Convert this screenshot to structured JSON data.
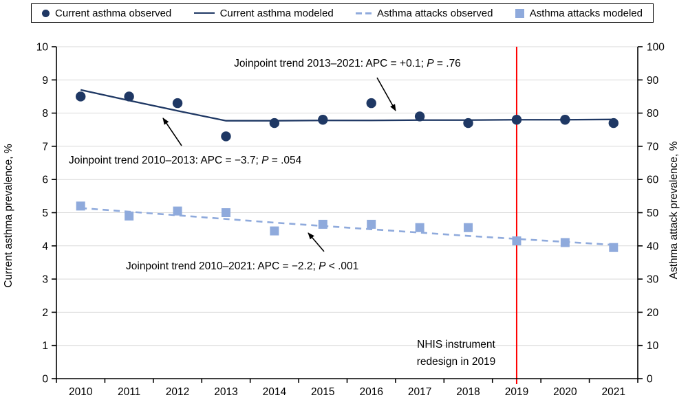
{
  "colors": {
    "navy": "#1f3864",
    "light_blue": "#8faadc",
    "red": "#ff0000",
    "gridline": "#d9d9d9",
    "axis": "#000000"
  },
  "legend": {
    "items": [
      {
        "label": "Current asthma observed",
        "marker": "circle",
        "icon_name": "navy-circle-marker-icon",
        "color": "#1f3864"
      },
      {
        "label": "Current asthma modeled",
        "marker": "line",
        "icon_name": "navy-solid-line-marker-icon",
        "color": "#1f3864"
      },
      {
        "label": "Asthma attacks observed",
        "marker": "dashes",
        "icon_name": "blue-dashed-line-marker-icon",
        "color": "#8faadc"
      },
      {
        "label": "Asthma attacks modeled",
        "marker": "square",
        "icon_name": "blue-square-marker-icon",
        "color": "#8faadc"
      }
    ]
  },
  "chart_data": {
    "type": "line",
    "x": [
      2010,
      2011,
      2012,
      2013,
      2014,
      2015,
      2016,
      2017,
      2018,
      2019,
      2020,
      2021
    ],
    "left_axis": {
      "label": "Current asthma prevalence, %",
      "min": 0,
      "max": 10,
      "tick_step": 1,
      "ticks": [
        0,
        1,
        2,
        3,
        4,
        5,
        6,
        7,
        8,
        9,
        10
      ]
    },
    "right_axis": {
      "label": "Asthma attack prevalence, %",
      "min": 0,
      "max": 100,
      "tick_step": 10,
      "ticks": [
        0,
        10,
        20,
        30,
        40,
        50,
        60,
        70,
        80,
        90,
        100
      ]
    },
    "grid": "horizontal-on",
    "legend_position": "top",
    "series": [
      {
        "name": "Current asthma observed",
        "axis": "left",
        "style": "scatter-circle",
        "color": "#1f3864",
        "values": [
          8.5,
          8.5,
          8.3,
          7.3,
          7.7,
          7.8,
          8.3,
          7.9,
          7.7,
          7.8,
          7.8,
          7.7
        ]
      },
      {
        "name": "Current asthma modeled",
        "axis": "left",
        "style": "solid-line",
        "color": "#1f3864",
        "values": [
          8.7,
          8.38,
          8.07,
          7.77,
          7.77,
          7.78,
          7.78,
          7.79,
          7.79,
          7.8,
          7.8,
          7.81
        ]
      },
      {
        "name": "Asthma attacks observed",
        "axis": "right",
        "style": "dashed-line",
        "color": "#8faadc",
        "values": [
          51.4,
          50.3,
          49.2,
          48.1,
          47.0,
          46.0,
          45.0,
          44.0,
          43.0,
          42.1,
          41.2,
          40.3
        ]
      },
      {
        "name": "Asthma attacks modeled",
        "axis": "right",
        "style": "scatter-square",
        "color": "#8faadc",
        "values": [
          52,
          49,
          50.5,
          50,
          44.5,
          46.5,
          46.5,
          45.5,
          45.5,
          41.5,
          41,
          39.5
        ]
      }
    ],
    "reference_line": {
      "x": 2019,
      "color": "#ff0000",
      "label_line1": "NHIS instrument",
      "label_line2": "redesign in 2019"
    }
  },
  "annotations": {
    "trend_2013_2021": {
      "prefix": "Joinpoint trend 2013–2021: APC = +0.1; ",
      "p": "P",
      "suffix": " = .76"
    },
    "trend_2010_2013": {
      "prefix": "Joinpoint trend 2010–2013: APC = −3.7; ",
      "p": "P",
      "suffix": " = .054"
    },
    "trend_2010_2021": {
      "prefix": "Joinpoint trend 2010–2021: APC = −2.2; ",
      "p": "P",
      "suffix": " < .001"
    }
  }
}
